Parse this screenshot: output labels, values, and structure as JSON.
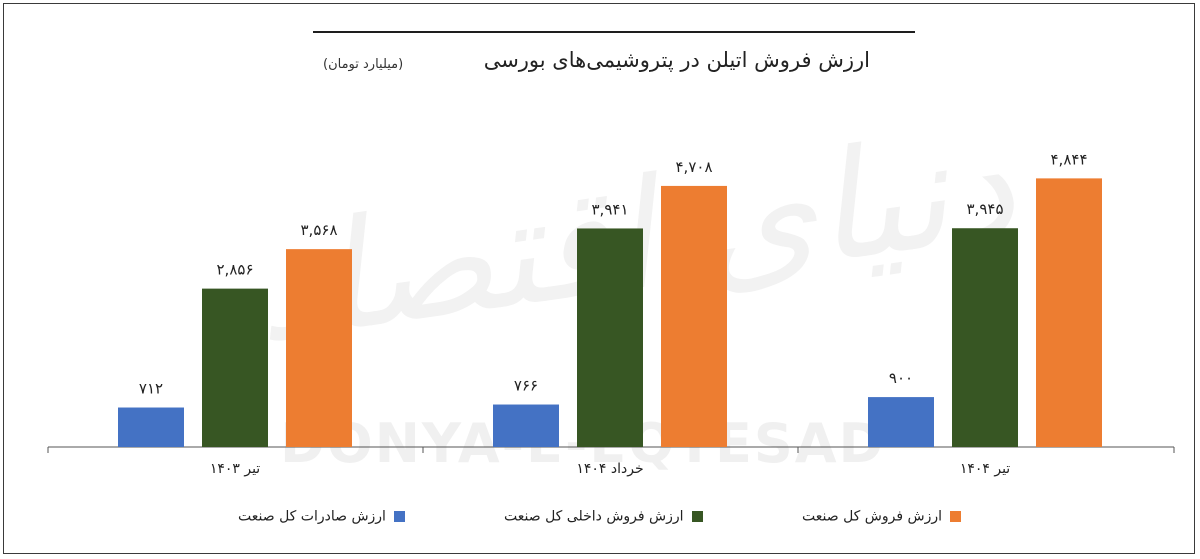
{
  "title": "ارزش فروش اتیلن در پتروشیمی‌های بورسی",
  "subtitle": "(میلیارد تومان)",
  "watermark": {
    "fa": "دنیای اقتصاد",
    "en": "DONYA-E-EQTESAD"
  },
  "colors": {
    "blue": "#4472c4",
    "green": "#375623",
    "orange": "#ed7d31"
  },
  "chart_data": {
    "type": "bar",
    "categories": [
      "تیر ۱۴۰۳",
      "خرداد ۱۴۰۴",
      "تیر ۱۴۰۴"
    ],
    "series": [
      {
        "name": "ارزش صادرات کل صنعت",
        "color": "#4472c4",
        "values": [
          712,
          766,
          900
        ],
        "labels": [
          "۷۱۲",
          "۷۶۶",
          "۹۰۰"
        ]
      },
      {
        "name": "ارزش فروش داخلی کل صنعت",
        "color": "#375623",
        "values": [
          2856,
          3941,
          3945
        ],
        "labels": [
          "۲,۸۵۶",
          "۳,۹۴۱",
          "۳,۹۴۵"
        ]
      },
      {
        "name": "ارزش فروش کل صنعت",
        "color": "#ed7d31",
        "values": [
          3568,
          4708,
          4844
        ],
        "labels": [
          "۳,۵۶۸",
          "۴,۷۰۸",
          "۴,۸۴۴"
        ]
      }
    ],
    "ylim": [
      0,
      5500
    ],
    "grid": false,
    "legend_position": "bottom"
  }
}
